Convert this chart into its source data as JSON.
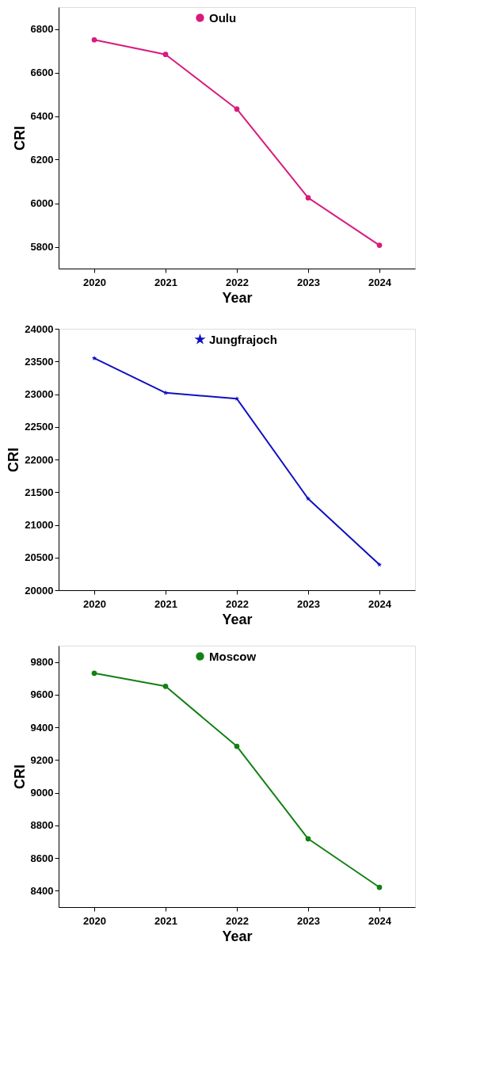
{
  "chart_data": [
    {
      "type": "line",
      "xlabel": "Year",
      "ylabel": "CRI",
      "x": [
        2020,
        2021,
        2022,
        2023,
        2024
      ],
      "xlim": [
        2019.5,
        2024.5
      ],
      "xticks": [
        2020,
        2021,
        2022,
        2023,
        2024
      ],
      "ylim": [
        5700,
        6900
      ],
      "yticks": [
        5800,
        6000,
        6200,
        6400,
        6600,
        6800
      ],
      "marker": "circle",
      "legend": "top",
      "grid": false,
      "series": [
        {
          "name": "Oulu",
          "color": "#d81b7d",
          "values": [
            6750,
            6683,
            6432,
            6025,
            5807
          ]
        }
      ]
    },
    {
      "type": "line",
      "xlabel": "Year",
      "ylabel": "CRI",
      "x": [
        2020,
        2021,
        2022,
        2023,
        2024
      ],
      "xlim": [
        2019.5,
        2024.5
      ],
      "xticks": [
        2020,
        2021,
        2022,
        2023,
        2024
      ],
      "ylim": [
        20000,
        24000
      ],
      "yticks": [
        20000,
        20500,
        21000,
        21500,
        22000,
        22500,
        23000,
        23500,
        24000
      ],
      "marker": "star",
      "legend": "top",
      "grid": false,
      "series": [
        {
          "name": "Jungfrajoch",
          "color": "#1010c0",
          "values": [
            23550,
            23020,
            22930,
            21400,
            20390
          ]
        }
      ]
    },
    {
      "type": "line",
      "xlabel": "Year",
      "ylabel": "CRI",
      "x": [
        2020,
        2021,
        2022,
        2023,
        2024
      ],
      "xlim": [
        2019.5,
        2024.5
      ],
      "xticks": [
        2020,
        2021,
        2022,
        2023,
        2024
      ],
      "ylim": [
        8300,
        9900
      ],
      "yticks": [
        8400,
        8600,
        8800,
        9000,
        9200,
        9400,
        9600,
        9800
      ],
      "marker": "circle",
      "legend": "top",
      "grid": false,
      "series": [
        {
          "name": "Moscow",
          "color": "#148014",
          "values": [
            9731,
            9651,
            9284,
            8718,
            8421
          ]
        }
      ]
    }
  ]
}
